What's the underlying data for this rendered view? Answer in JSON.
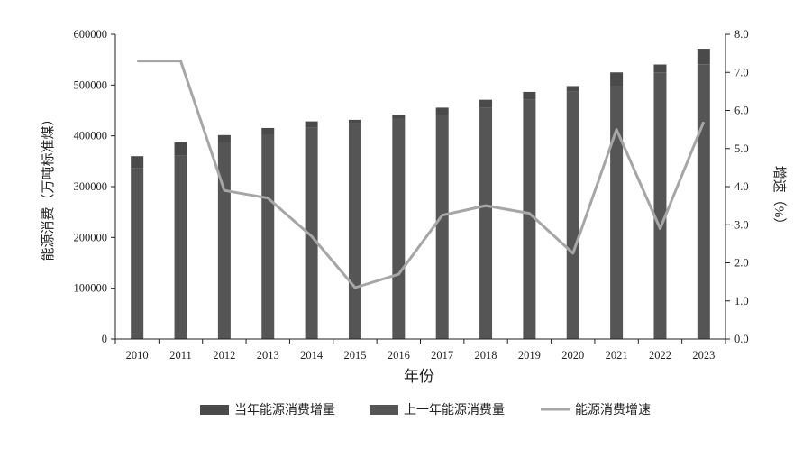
{
  "chart_data": {
    "type": "bar",
    "categories": [
      "2010",
      "2011",
      "2012",
      "2013",
      "2014",
      "2015",
      "2016",
      "2017",
      "2018",
      "2019",
      "2020",
      "2021",
      "2022",
      "2023"
    ],
    "series": [
      {
        "name": "当年能源消费增量",
        "kind": "bar-stack-top",
        "color": "#4a4a4a",
        "values": [
          24000,
          26000,
          14500,
          13500,
          12500,
          5500,
          7500,
          14500,
          16000,
          15500,
          11000,
          27000,
          15500,
          30500
        ]
      },
      {
        "name": "上一年能源消费量",
        "kind": "bar-stack-bottom",
        "color": "#555555",
        "values": [
          336000,
          361000,
          387000,
          402000,
          416000,
          426000,
          434000,
          441000,
          455000,
          471000,
          487000,
          498000,
          525000,
          541000
        ]
      },
      {
        "name": "能源消费增速",
        "kind": "line",
        "axis": "right",
        "color": "#a6a6a6",
        "values": [
          7.3,
          7.3,
          3.9,
          3.7,
          2.7,
          1.35,
          1.7,
          3.25,
          3.5,
          3.3,
          2.25,
          5.5,
          2.9,
          5.7
        ]
      }
    ],
    "xlabel": "年份",
    "ylabel": "能源消费（万吨标准煤）",
    "ylabel_right": "增速（%）",
    "ylim": [
      0,
      600000
    ],
    "ylim_right": [
      0.0,
      8.0
    ],
    "yticks": [
      "0",
      "100000",
      "200000",
      "300000",
      "400000",
      "500000",
      "600000"
    ],
    "yticks_right": [
      "0.0",
      "1.0",
      "2.0",
      "3.0",
      "4.0",
      "5.0",
      "6.0",
      "7.0",
      "8.0"
    ],
    "legend_position": "bottom",
    "grid": false
  }
}
